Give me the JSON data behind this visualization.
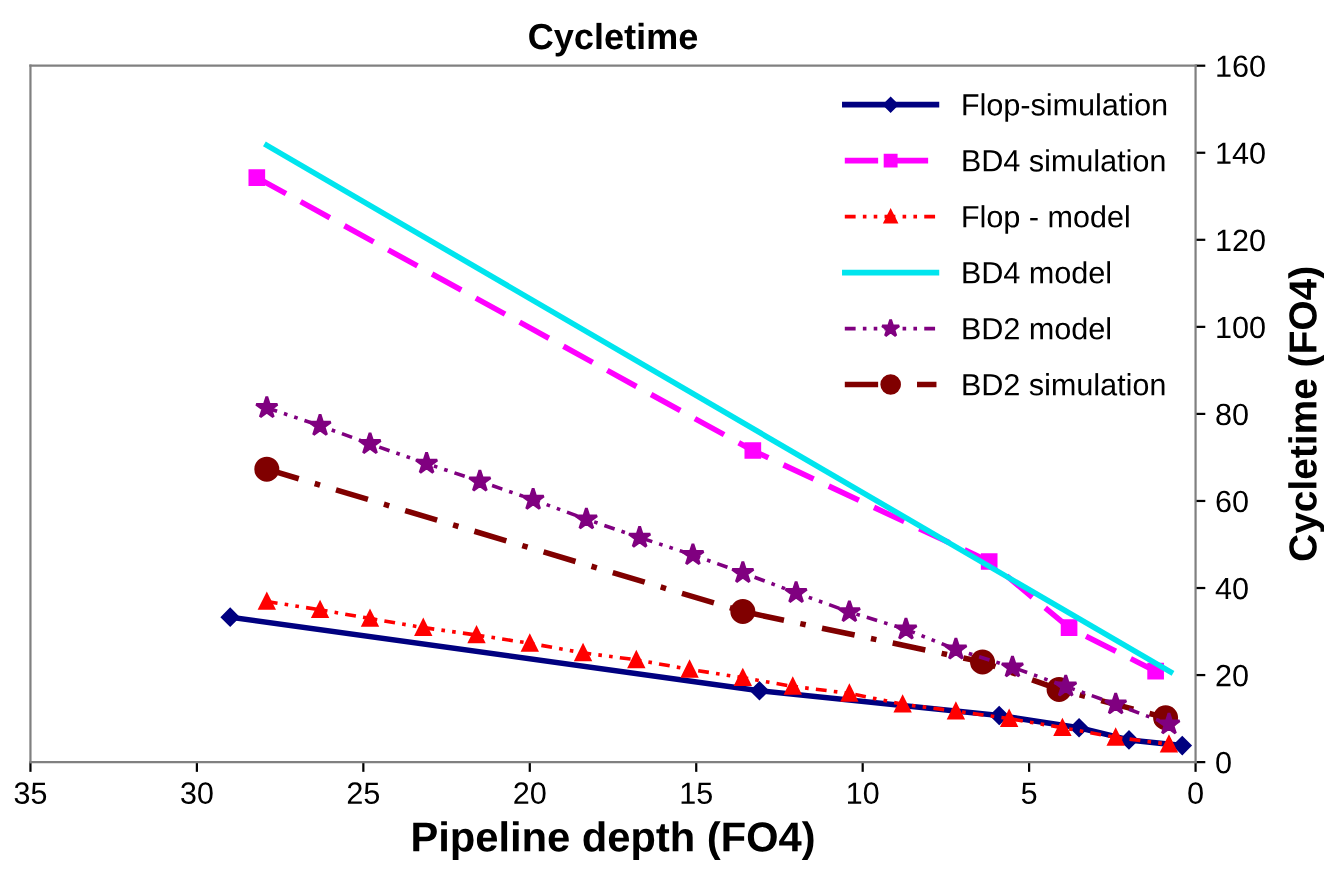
{
  "chart_data": {
    "type": "line",
    "title": "Cycletime",
    "xlabel": "Pipeline depth (FO4)",
    "ylabel": "Cycletime (FO4)",
    "xlim": [
      35,
      0
    ],
    "xticks": [
      35,
      30,
      25,
      20,
      15,
      10,
      5,
      0
    ],
    "ylim": [
      0,
      160
    ],
    "yticks": [
      0,
      20,
      40,
      60,
      80,
      100,
      120,
      140,
      160
    ],
    "grid": false,
    "legend": "top right",
    "series": [
      {
        "name": "Flop-simulation",
        "color": "#000080",
        "marker": "diamond",
        "line_style": "solid",
        "x": [
          29.0,
          13.1,
          5.9,
          3.5,
          2.0,
          0.4
        ],
        "values": [
          33.3,
          16.4,
          10.7,
          7.9,
          5.1,
          3.8
        ]
      },
      {
        "name": "BD4 simulation",
        "color": "#ff00ff",
        "marker": "square",
        "line_style": "dashed",
        "x": [
          28.2,
          13.3,
          6.2,
          3.8,
          1.2
        ],
        "values": [
          134.3,
          71.6,
          46.1,
          30.9,
          20.9
        ]
      },
      {
        "name": "Flop - model",
        "color": "#ff0000",
        "marker": "triangle",
        "line_style": "dotted",
        "x": [
          27.9,
          26.3,
          24.8,
          23.2,
          21.6,
          20.0,
          18.4,
          16.8,
          15.2,
          13.6,
          12.1,
          10.4,
          8.8,
          7.2,
          5.6,
          4.0,
          2.4,
          0.8
        ],
        "values": [
          36.9,
          35.0,
          33.0,
          30.9,
          29.2,
          27.3,
          25.1,
          23.5,
          21.3,
          19.4,
          17.4,
          15.8,
          13.3,
          11.7,
          10.0,
          7.9,
          5.7,
          4.1
        ]
      },
      {
        "name": "BD4 model",
        "color": "#00e5ee",
        "marker": "none",
        "line_style": "solid",
        "x": [
          27.9,
          0.75
        ],
        "values": [
          141.7,
          20.7
        ]
      },
      {
        "name": "BD2 model",
        "color": "#800080",
        "marker": "star",
        "line_style": "dotted",
        "x": [
          27.9,
          26.3,
          24.8,
          23.1,
          21.5,
          19.9,
          18.3,
          16.7,
          15.1,
          13.6,
          12.0,
          10.4,
          8.7,
          7.2,
          5.5,
          3.9,
          2.4,
          0.8
        ],
        "values": [
          81.4,
          77.3,
          73.1,
          68.6,
          64.5,
          60.3,
          55.8,
          51.6,
          47.6,
          43.5,
          38.9,
          34.5,
          30.5,
          25.9,
          21.8,
          17.4,
          13.3,
          8.7
        ]
      },
      {
        "name": "BD2 simulation",
        "color": "#800000",
        "marker": "circle",
        "line_style": "dashdot",
        "x": [
          27.9,
          13.6,
          6.4,
          4.1,
          0.9
        ],
        "values": [
          67.3,
          34.6,
          23.0,
          16.7,
          10.2
        ]
      }
    ]
  }
}
